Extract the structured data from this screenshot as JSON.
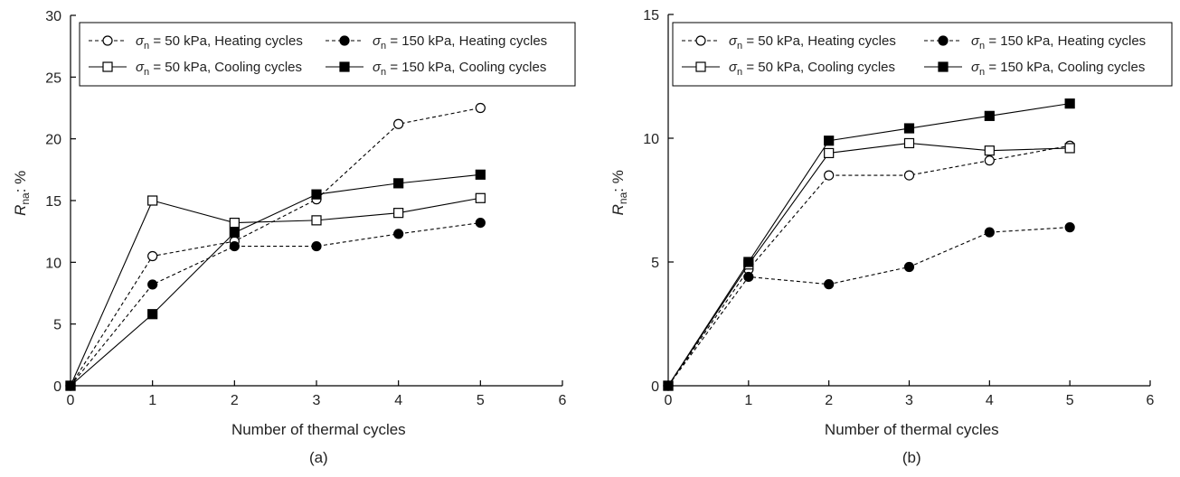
{
  "chart_data": [
    {
      "type": "line",
      "panel_label": "(a)",
      "xlabel": "Number of thermal cycles",
      "ylabel_main": "R",
      "ylabel_sub": "na",
      "ylabel_unit": ": %",
      "xlim": [
        0,
        6
      ],
      "ylim": [
        0,
        30
      ],
      "xticks": [
        "0",
        "1",
        "2",
        "3",
        "4",
        "5",
        "6"
      ],
      "yticks": [
        "0",
        "5",
        "10",
        "15",
        "20",
        "25",
        "30"
      ],
      "x": [
        0,
        1,
        2,
        3,
        4,
        5
      ],
      "legend_position": "top",
      "series": [
        {
          "name": "σn = 50 kPa, Heating cycles",
          "legend_sym": "σ",
          "legend_sub": "n",
          "legend_text": " = 50 kPa, Heating cycles",
          "marker": "circle-open",
          "dash": true,
          "values": [
            0,
            10.5,
            11.7,
            15.1,
            21.2,
            22.5
          ]
        },
        {
          "name": "σn = 150 kPa, Heating cycles",
          "legend_sym": "σ",
          "legend_sub": "n",
          "legend_text": " = 150 kPa, Heating cycles",
          "marker": "circle-filled",
          "dash": true,
          "values": [
            0,
            8.2,
            11.3,
            11.3,
            12.3,
            13.2
          ]
        },
        {
          "name": "σn = 50 kPa, Cooling cycles",
          "legend_sym": "σ",
          "legend_sub": "n",
          "legend_text": " = 50 kPa, Cooling cycles",
          "marker": "square-open",
          "dash": false,
          "values": [
            0,
            15.0,
            13.2,
            13.4,
            14.0,
            15.2
          ]
        },
        {
          "name": "σn = 150 kPa, Cooling cycles",
          "legend_sym": "σ",
          "legend_sub": "n",
          "legend_text": " = 150 kPa, Cooling cycles",
          "marker": "square-filled",
          "dash": false,
          "values": [
            0,
            5.8,
            12.4,
            15.5,
            16.4,
            17.1
          ]
        }
      ]
    },
    {
      "type": "line",
      "panel_label": "(b)",
      "xlabel": "Number of thermal cycles",
      "ylabel_main": "R",
      "ylabel_sub": "na",
      "ylabel_unit": ": %",
      "xlim": [
        0,
        6
      ],
      "ylim": [
        0,
        15
      ],
      "xticks": [
        "0",
        "1",
        "2",
        "3",
        "4",
        "5",
        "6"
      ],
      "yticks": [
        "0",
        "5",
        "10",
        "15"
      ],
      "x": [
        0,
        1,
        2,
        3,
        4,
        5
      ],
      "legend_position": "top",
      "series": [
        {
          "name": "σn = 50 kPa, Heating cycles",
          "legend_sym": "σ",
          "legend_sub": "n",
          "legend_text": " = 50 kPa, Heating cycles",
          "marker": "circle-open",
          "dash": true,
          "values": [
            0,
            4.7,
            8.5,
            8.5,
            9.1,
            9.7
          ]
        },
        {
          "name": "σn = 150 kPa, Heating cycles",
          "legend_sym": "σ",
          "legend_sub": "n",
          "legend_text": " = 150 kPa, Heating cycles",
          "marker": "circle-filled",
          "dash": true,
          "values": [
            0,
            4.4,
            4.1,
            4.8,
            6.2,
            6.4
          ]
        },
        {
          "name": "σn = 50 kPa, Cooling cycles",
          "legend_sym": "σ",
          "legend_sub": "n",
          "legend_text": " = 50 kPa, Cooling cycles",
          "marker": "square-open",
          "dash": false,
          "values": [
            0,
            4.9,
            9.4,
            9.8,
            9.5,
            9.6
          ]
        },
        {
          "name": "σn = 150 kPa, Cooling cycles",
          "legend_sym": "σ",
          "legend_sub": "n",
          "legend_text": " = 150 kPa, Cooling cycles",
          "marker": "square-filled",
          "dash": false,
          "values": [
            0,
            5.0,
            9.9,
            10.4,
            10.9,
            11.4
          ]
        }
      ]
    }
  ]
}
